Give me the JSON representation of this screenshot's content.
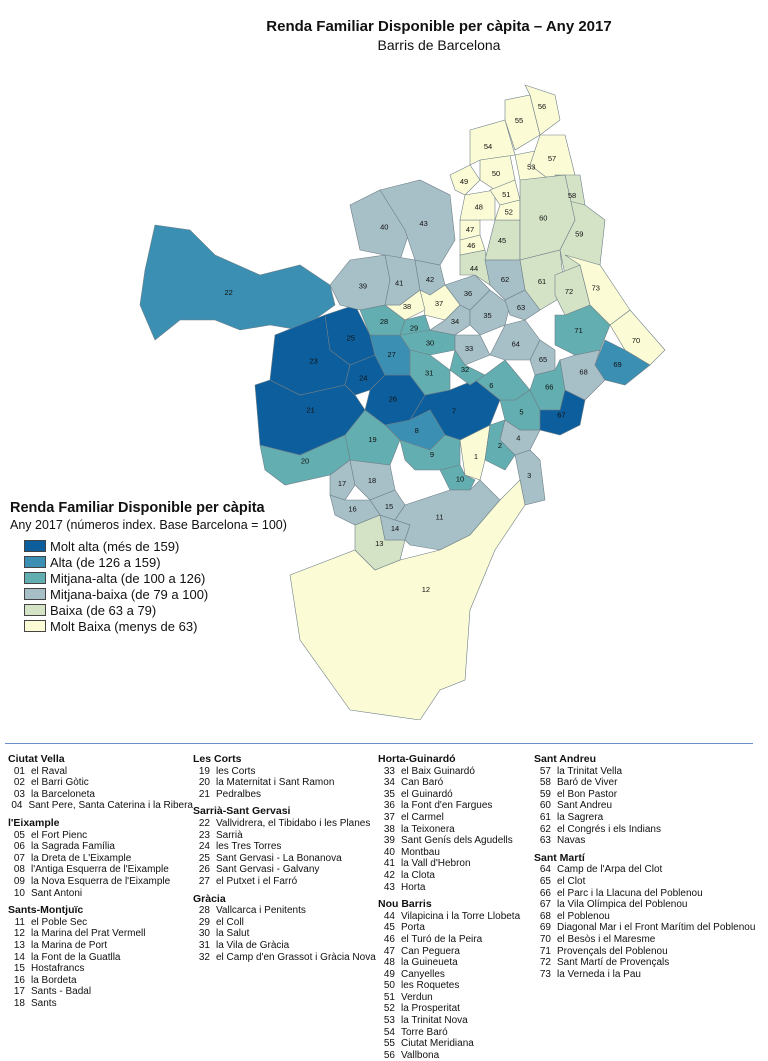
{
  "title": "Renda Familiar Disponible per càpita – Any 2017",
  "subtitle": "Barris de Barcelona",
  "legend": {
    "title": "Renda Familiar Disponible per càpita",
    "subtitle": "Any 2017 (números index. Base Barcelona = 100)",
    "items": [
      {
        "label": "Molt alta (més de 159)",
        "color": "#0d5e9c"
      },
      {
        "label": "Alta (de 126 a 159)",
        "color": "#3a8fb3"
      },
      {
        "label": "Mitjana-alta (de 100 a 126)",
        "color": "#63aeb0"
      },
      {
        "label": "Mitjana-baixa (de 79 a 100)",
        "color": "#a7bfc7"
      },
      {
        "label": "Baixa (de 63 a 79)",
        "color": "#d4e3c6"
      },
      {
        "label": "Molt Baixa (menys de 63)",
        "color": "#fbfbd5"
      }
    ]
  },
  "districts": [
    {
      "name": "Ciutat Vella",
      "col": 0,
      "items": [
        [
          "01",
          "el Raval"
        ],
        [
          "02",
          "el Barri Gòtic"
        ],
        [
          "03",
          "la Barceloneta"
        ],
        [
          "04",
          "Sant Pere, Santa Caterina i la Ribera"
        ]
      ]
    },
    {
      "name": "l'Eixample",
      "col": 0,
      "items": [
        [
          "05",
          "el Fort Pienc"
        ],
        [
          "06",
          "la Sagrada Família"
        ],
        [
          "07",
          "la Dreta de L'Eixample"
        ],
        [
          "08",
          "l'Antiga Esquerra de l'Eixample"
        ],
        [
          "09",
          "la Nova Esquerra de l'Eixample"
        ],
        [
          "10",
          "Sant Antoni"
        ]
      ]
    },
    {
      "name": "Sants-Montjuïc",
      "col": 0,
      "items": [
        [
          "11",
          "el Poble Sec"
        ],
        [
          "12",
          "la Marina del Prat Vermell"
        ],
        [
          "13",
          "la Marina de Port"
        ],
        [
          "14",
          "la Font de la Guatlla"
        ],
        [
          "15",
          "Hostafrancs"
        ],
        [
          "16",
          "la Bordeta"
        ],
        [
          "17",
          "Sants - Badal"
        ],
        [
          "18",
          "Sants"
        ]
      ]
    },
    {
      "name": "Les Corts",
      "col": 1,
      "items": [
        [
          "19",
          "les Corts"
        ],
        [
          "20",
          "la Maternitat i Sant Ramon"
        ],
        [
          "21",
          "Pedralbes"
        ]
      ]
    },
    {
      "name": "Sarrià-Sant Gervasi",
      "col": 1,
      "items": [
        [
          "22",
          "Vallvidrera, el Tibidabo i les Planes"
        ],
        [
          "23",
          "Sarrià"
        ],
        [
          "24",
          "les Tres Torres"
        ],
        [
          "25",
          "Sant Gervasi - La Bonanova"
        ],
        [
          "26",
          "Sant Gervasi - Galvany"
        ],
        [
          "27",
          "el Putxet i el Farró"
        ]
      ]
    },
    {
      "name": "Gràcia",
      "col": 1,
      "items": [
        [
          "28",
          "Vallcarca i Penitents"
        ],
        [
          "29",
          "el Coll"
        ],
        [
          "30",
          "la Salut"
        ],
        [
          "31",
          "la Vila de Gràcia"
        ],
        [
          "32",
          "el Camp d'en Grassot i Gràcia Nova"
        ]
      ]
    },
    {
      "name": "Horta-Guinardó",
      "col": 2,
      "items": [
        [
          "33",
          "el Baix Guinardó"
        ],
        [
          "34",
          "Can Baró"
        ],
        [
          "35",
          "el Guinardó"
        ],
        [
          "36",
          "la Font d'en Fargues"
        ],
        [
          "37",
          "el Carmel"
        ],
        [
          "38",
          "la Teixonera"
        ],
        [
          "39",
          "Sant Genís dels Agudells"
        ],
        [
          "40",
          "Montbau"
        ],
        [
          "41",
          "la Vall d'Hebron"
        ],
        [
          "42",
          "la Clota"
        ],
        [
          "43",
          "Horta"
        ]
      ]
    },
    {
      "name": "Nou Barris",
      "col": 2,
      "items": [
        [
          "44",
          "Vilapicina i la Torre Llobeta"
        ],
        [
          "45",
          "Porta"
        ],
        [
          "46",
          "el Turó de la Peira"
        ],
        [
          "47",
          "Can Peguera"
        ],
        [
          "48",
          "la Guineueta"
        ],
        [
          "49",
          "Canyelles"
        ],
        [
          "50",
          "les Roquetes"
        ],
        [
          "51",
          "Verdun"
        ],
        [
          "52",
          "la Prosperitat"
        ],
        [
          "53",
          "la Trinitat Nova"
        ],
        [
          "54",
          "Torre Baró"
        ],
        [
          "55",
          "Ciutat Meridiana"
        ],
        [
          "56",
          "Vallbona"
        ]
      ]
    },
    {
      "name": "Sant Andreu",
      "col": 3,
      "items": [
        [
          "57",
          "la Trinitat Vella"
        ],
        [
          "58",
          "Baró de Viver"
        ],
        [
          "59",
          "el Bon Pastor"
        ],
        [
          "60",
          "Sant Andreu"
        ],
        [
          "61",
          "la Sagrera"
        ],
        [
          "62",
          "el Congrés i els Indians"
        ],
        [
          "63",
          "Navas"
        ]
      ]
    },
    {
      "name": "Sant Martí",
      "col": 3,
      "items": [
        [
          "64",
          "Camp de l'Arpa del Clot"
        ],
        [
          "65",
          "el Clot"
        ],
        [
          "66",
          "el Parc i la Llacuna del Poblenou"
        ],
        [
          "67",
          "la Vila Olímpica del Poblenou"
        ],
        [
          "68",
          "el Poblenou"
        ],
        [
          "69",
          "Diagonal Mar i el Front Marítim del Poblenou"
        ],
        [
          "70",
          "el Besòs i el Maresme"
        ],
        [
          "71",
          "Provençals del Poblenou"
        ],
        [
          "72",
          "Sant Martí de Provençals"
        ],
        [
          "73",
          "la Verneda i la Pau"
        ]
      ]
    }
  ],
  "neighborhoods": [
    {
      "id": "01",
      "cls": 5
    },
    {
      "id": "02",
      "cls": 2
    },
    {
      "id": "03",
      "cls": 3
    },
    {
      "id": "04",
      "cls": 3
    },
    {
      "id": "05",
      "cls": 2
    },
    {
      "id": "06",
      "cls": 2
    },
    {
      "id": "07",
      "cls": 0
    },
    {
      "id": "08",
      "cls": 1
    },
    {
      "id": "09",
      "cls": 2
    },
    {
      "id": "10",
      "cls": 2
    },
    {
      "id": "11",
      "cls": 3
    },
    {
      "id": "12",
      "cls": 5
    },
    {
      "id": "13",
      "cls": 4
    },
    {
      "id": "14",
      "cls": 3
    },
    {
      "id": "15",
      "cls": 3
    },
    {
      "id": "16",
      "cls": 3
    },
    {
      "id": "17",
      "cls": 3
    },
    {
      "id": "18",
      "cls": 3
    },
    {
      "id": "19",
      "cls": 2
    },
    {
      "id": "20",
      "cls": 2
    },
    {
      "id": "21",
      "cls": 0
    },
    {
      "id": "22",
      "cls": 1
    },
    {
      "id": "23",
      "cls": 0
    },
    {
      "id": "24",
      "cls": 0
    },
    {
      "id": "25",
      "cls": 0
    },
    {
      "id": "26",
      "cls": 0
    },
    {
      "id": "27",
      "cls": 1
    },
    {
      "id": "28",
      "cls": 2
    },
    {
      "id": "29",
      "cls": 2
    },
    {
      "id": "30",
      "cls": 2
    },
    {
      "id": "31",
      "cls": 2
    },
    {
      "id": "32",
      "cls": 2
    },
    {
      "id": "33",
      "cls": 3
    },
    {
      "id": "34",
      "cls": 3
    },
    {
      "id": "35",
      "cls": 3
    },
    {
      "id": "36",
      "cls": 3
    },
    {
      "id": "37",
      "cls": 5
    },
    {
      "id": "38",
      "cls": 5
    },
    {
      "id": "39",
      "cls": 3
    },
    {
      "id": "40",
      "cls": 3
    },
    {
      "id": "41",
      "cls": 3
    },
    {
      "id": "42",
      "cls": 3
    },
    {
      "id": "43",
      "cls": 3
    },
    {
      "id": "44",
      "cls": 4
    },
    {
      "id": "45",
      "cls": 4
    },
    {
      "id": "46",
      "cls": 5
    },
    {
      "id": "47",
      "cls": 5
    },
    {
      "id": "48",
      "cls": 5
    },
    {
      "id": "49",
      "cls": 5
    },
    {
      "id": "50",
      "cls": 5
    },
    {
      "id": "51",
      "cls": 5
    },
    {
      "id": "52",
      "cls": 5
    },
    {
      "id": "53",
      "cls": 5
    },
    {
      "id": "54",
      "cls": 5
    },
    {
      "id": "55",
      "cls": 5
    },
    {
      "id": "56",
      "cls": 5
    },
    {
      "id": "57",
      "cls": 5
    },
    {
      "id": "58",
      "cls": 4
    },
    {
      "id": "59",
      "cls": 4
    },
    {
      "id": "60",
      "cls": 4
    },
    {
      "id": "61",
      "cls": 4
    },
    {
      "id": "62",
      "cls": 3
    },
    {
      "id": "63",
      "cls": 3
    },
    {
      "id": "64",
      "cls": 3
    },
    {
      "id": "65",
      "cls": 3
    },
    {
      "id": "66",
      "cls": 2
    },
    {
      "id": "67",
      "cls": 0
    },
    {
      "id": "68",
      "cls": 3
    },
    {
      "id": "69",
      "cls": 1
    },
    {
      "id": "70",
      "cls": 5
    },
    {
      "id": "71",
      "cls": 2
    },
    {
      "id": "72",
      "cls": 4
    },
    {
      "id": "73",
      "cls": 5
    }
  ]
}
